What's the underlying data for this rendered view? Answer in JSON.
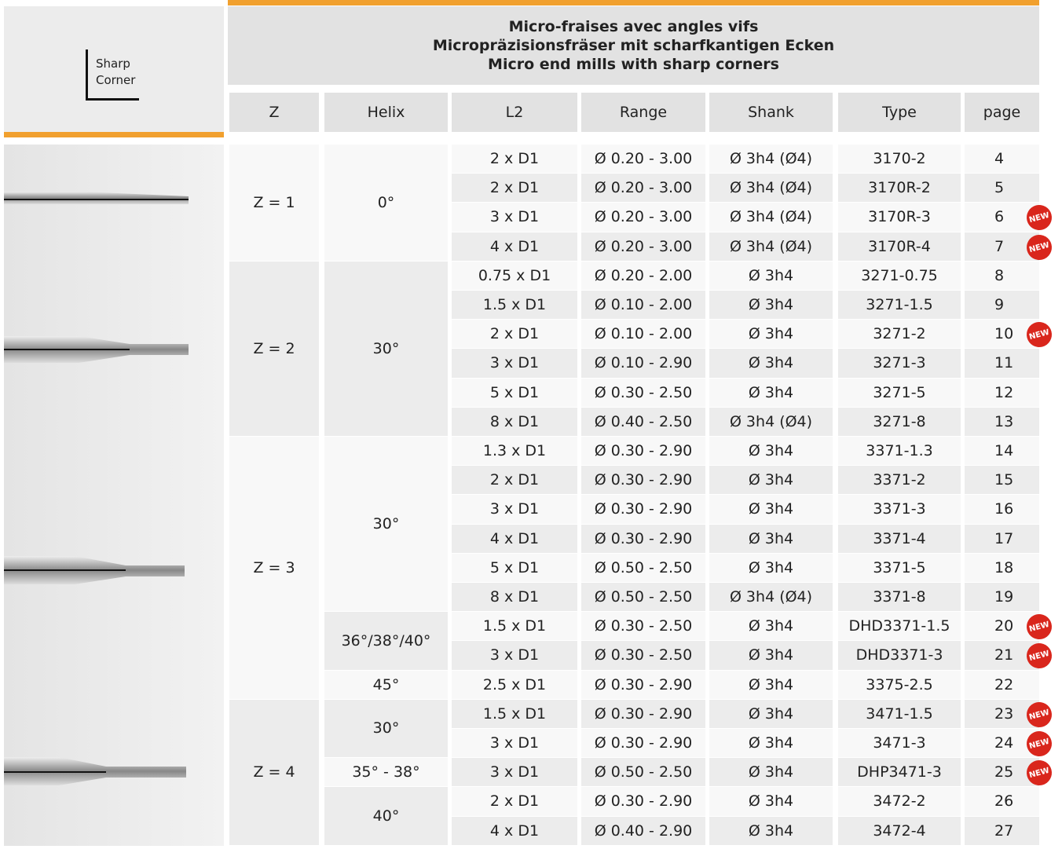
{
  "header": {
    "label": "Sharp\nCorner",
    "title_lines": [
      "Micro-fraises avec angles vifs",
      "Micropräzisionsfräser mit scharfkantigen Ecken",
      "Micro end mills with sharp corners"
    ],
    "columns": [
      "Z",
      "Helix",
      "L2",
      "Range",
      "Shank",
      "Type",
      "page"
    ]
  },
  "new_badge": "NEW",
  "groups": [
    {
      "z": "Z = 1",
      "helix": [
        {
          "label": "0°",
          "rows": [
            {
              "l2": "2 x D1",
              "range": "Ø 0.20 - 3.00",
              "shank": "Ø 3h4 (Ø4)",
              "type": "3170-2",
              "page": "4"
            },
            {
              "l2": "2 x D1",
              "range": "Ø 0.20 - 3.00",
              "shank": "Ø 3h4 (Ø4)",
              "type": "3170R-2",
              "page": "5"
            },
            {
              "l2": "3 x D1",
              "range": "Ø 0.20 - 3.00",
              "shank": "Ø 3h4 (Ø4)",
              "type": "3170R-3",
              "page": "6",
              "is_new": true
            },
            {
              "l2": "4 x D1",
              "range": "Ø 0.20 - 3.00",
              "shank": "Ø 3h4 (Ø4)",
              "type": "3170R-4",
              "page": "7",
              "is_new": true
            }
          ]
        }
      ]
    },
    {
      "z": "Z = 2",
      "helix": [
        {
          "label": "30°",
          "rows": [
            {
              "l2": "0.75 x D1",
              "range": "Ø 0.20 - 2.00",
              "shank": "Ø 3h4",
              "type": "3271-0.75",
              "page": "8"
            },
            {
              "l2": "1.5 x D1",
              "range": "Ø 0.10 - 2.00",
              "shank": "Ø 3h4",
              "type": "3271-1.5",
              "page": "9"
            },
            {
              "l2": "2 x D1",
              "range": "Ø 0.10 - 2.00",
              "shank": "Ø 3h4",
              "type": "3271-2",
              "page": "10",
              "is_new": true
            },
            {
              "l2": "3 x D1",
              "range": "Ø 0.10 - 2.90",
              "shank": "Ø 3h4",
              "type": "3271-3",
              "page": "11"
            },
            {
              "l2": "5 x D1",
              "range": "Ø 0.30 - 2.50",
              "shank": "Ø 3h4",
              "type": "3271-5",
              "page": "12"
            },
            {
              "l2": "8 x D1",
              "range": "Ø 0.40 - 2.50",
              "shank": "Ø 3h4 (Ø4)",
              "type": "3271-8",
              "page": "13"
            }
          ]
        }
      ]
    },
    {
      "z": "Z = 3",
      "helix": [
        {
          "label": "30°",
          "rows": [
            {
              "l2": "1.3 x D1",
              "range": "Ø 0.30 - 2.90",
              "shank": "Ø 3h4",
              "type": "3371-1.3",
              "page": "14"
            },
            {
              "l2": "2 x D1",
              "range": "Ø 0.30 - 2.90",
              "shank": "Ø 3h4",
              "type": "3371-2",
              "page": "15"
            },
            {
              "l2": "3 x D1",
              "range": "Ø 0.30 - 2.90",
              "shank": "Ø 3h4",
              "type": "3371-3",
              "page": "16"
            },
            {
              "l2": "4 x D1",
              "range": "Ø 0.30 - 2.90",
              "shank": "Ø 3h4",
              "type": "3371-4",
              "page": "17"
            },
            {
              "l2": "5 x D1",
              "range": "Ø 0.50 - 2.50",
              "shank": "Ø 3h4",
              "type": "3371-5",
              "page": "18"
            },
            {
              "l2": "8 x D1",
              "range": "Ø 0.50 - 2.50",
              "shank": "Ø 3h4 (Ø4)",
              "type": "3371-8",
              "page": "19"
            }
          ]
        },
        {
          "label": "36°/38°/40°",
          "rows": [
            {
              "l2": "1.5 x D1",
              "range": "Ø 0.30 - 2.50",
              "shank": "Ø 3h4",
              "type": "DHD3371-1.5",
              "page": "20",
              "is_new": true
            },
            {
              "l2": "3 x D1",
              "range": "Ø 0.30 - 2.50",
              "shank": "Ø 3h4",
              "type": "DHD3371-3",
              "page": "21",
              "is_new": true
            }
          ]
        },
        {
          "label": "45°",
          "rows": [
            {
              "l2": "2.5 x D1",
              "range": "Ø 0.30 - 2.90",
              "shank": "Ø 3h4",
              "type": "3375-2.5",
              "page": "22"
            }
          ]
        }
      ]
    },
    {
      "z": "Z = 4",
      "helix": [
        {
          "label": "30°",
          "rows": [
            {
              "l2": "1.5 x D1",
              "range": "Ø 0.30 - 2.90",
              "shank": "Ø 3h4",
              "type": "3471-1.5",
              "page": "23",
              "is_new": true
            },
            {
              "l2": "3 x D1",
              "range": "Ø 0.30 - 2.90",
              "shank": "Ø 3h4",
              "type": "3471-3",
              "page": "24",
              "is_new": true
            }
          ]
        },
        {
          "label": "35° - 38°",
          "rows": [
            {
              "l2": "3 x D1",
              "range": "Ø 0.50 - 2.50",
              "shank": "Ø 3h4",
              "type": "DHP3471-3",
              "page": "25",
              "is_new": true
            }
          ]
        },
        {
          "label": "40°",
          "rows": [
            {
              "l2": "2 x D1",
              "range": "Ø 0.30 - 2.90",
              "shank": "Ø 3h4",
              "type": "3472-2",
              "page": "26"
            },
            {
              "l2": "4 x D1",
              "range": "Ø 0.40 - 2.90",
              "shank": "Ø 3h4",
              "type": "3472-4",
              "page": "27"
            }
          ]
        }
      ]
    }
  ]
}
